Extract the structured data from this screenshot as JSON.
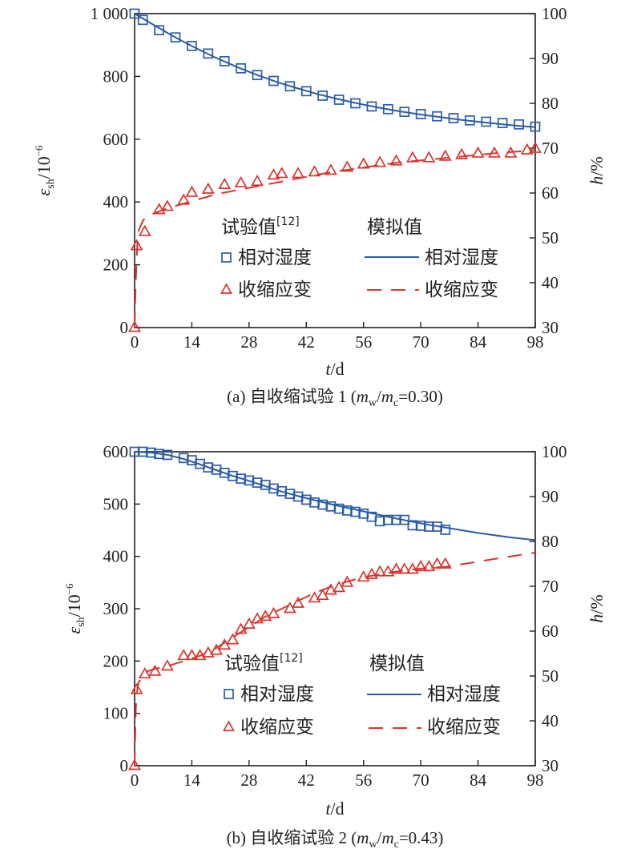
{
  "chart_data": [
    {
      "type": "line",
      "title": "",
      "caption": "(a) 自收缩试验 1 (m_w/m_c=0.30)",
      "xlabel": "t/d",
      "ylabel_left": "ε_sh/10^-6",
      "ylabel_right": "h/%",
      "xlim": [
        0,
        98
      ],
      "ylim_left": [
        0,
        1000
      ],
      "ylim_right": [
        30,
        100
      ],
      "xticks": [
        "0",
        "14",
        "28",
        "42",
        "56",
        "70",
        "84",
        "98"
      ],
      "yticks_left": [
        "0",
        "200",
        "400",
        "600",
        "800",
        "1 000"
      ],
      "yticks_right": [
        "30",
        "40",
        "50",
        "60",
        "70",
        "80",
        "90",
        "100"
      ],
      "legend": {
        "header_exp": "试验值",
        "header_exp_ref": "[12]",
        "header_sim": "模拟值",
        "rh_label": "相对湿度",
        "shrink_label": "收缩应变",
        "placement": "center"
      },
      "series": [
        {
          "name": "相对湿度",
          "kind": "experimental",
          "axis": "right",
          "color": "#2a5ca8",
          "marker": "square",
          "x": [
            0,
            2,
            6,
            10,
            14,
            18,
            22,
            26,
            30,
            34,
            38,
            42,
            46,
            50,
            54,
            58,
            62,
            66,
            70,
            74,
            78,
            82,
            86,
            90,
            94,
            98
          ],
          "y": [
            100,
            98.6,
            96.3,
            94.7,
            92.8,
            91.1,
            89.4,
            87.8,
            86.3,
            85,
            83.8,
            82.7,
            81.7,
            80.8,
            80,
            79.3,
            78.7,
            78.1,
            77.6,
            77.1,
            76.7,
            76.2,
            75.9,
            75.6,
            75.3,
            74.8
          ]
        },
        {
          "name": "相对湿度",
          "kind": "simulated",
          "axis": "right",
          "color": "#2a5ca8",
          "style": "solid",
          "x": [
            0,
            5,
            10,
            15,
            20,
            25,
            30,
            35,
            40,
            45,
            50,
            55,
            60,
            65,
            70,
            75,
            80,
            85,
            90,
            95,
            98
          ],
          "y": [
            100,
            97.3,
            94.7,
            92.3,
            90.1,
            88.1,
            86.3,
            84.7,
            83.3,
            82,
            80.9,
            79.9,
            79,
            78.2,
            77.5,
            76.9,
            76.3,
            75.8,
            75.3,
            74.9,
            74.7
          ]
        },
        {
          "name": "收缩应变",
          "kind": "experimental",
          "axis": "left",
          "color": "#d9342b",
          "marker": "triangle",
          "x": [
            0,
            0.5,
            2.5,
            6,
            8,
            12,
            14,
            18,
            22,
            26,
            30,
            34,
            36,
            40,
            44,
            48,
            52,
            56,
            60,
            64,
            68,
            72,
            76,
            80,
            84,
            88,
            92,
            96,
            98
          ],
          "y": [
            0,
            260,
            305,
            375,
            385,
            405,
            430,
            440,
            455,
            460,
            465,
            485,
            490,
            490,
            495,
            500,
            510,
            520,
            525,
            530,
            540,
            540,
            545,
            550,
            555,
            555,
            555,
            565,
            570
          ]
        },
        {
          "name": "收缩应变",
          "kind": "simulated",
          "axis": "left",
          "color": "#d9342b",
          "style": "dashed",
          "x": [
            0,
            0.3,
            0.7,
            1,
            2,
            3,
            5,
            8,
            12,
            16,
            20,
            26,
            32,
            40,
            48,
            56,
            64,
            72,
            80,
            88,
            98
          ],
          "y": [
            0,
            150,
            280,
            310,
            340,
            355,
            365,
            380,
            395,
            410,
            425,
            440,
            455,
            475,
            495,
            510,
            525,
            535,
            545,
            555,
            565
          ]
        }
      ]
    },
    {
      "type": "line",
      "title": "",
      "caption": "(b) 自收缩试验 2 (m_w/m_c=0.43)",
      "xlabel": "t/d",
      "ylabel_left": "ε_sh/10^-6",
      "ylabel_right": "h/%",
      "xlim": [
        0,
        98
      ],
      "ylim_left": [
        0,
        600
      ],
      "ylim_right": [
        30,
        100
      ],
      "xticks": [
        "0",
        "14",
        "28",
        "42",
        "56",
        "70",
        "84",
        "98"
      ],
      "yticks_left": [
        "0",
        "100",
        "200",
        "300",
        "400",
        "500",
        "600"
      ],
      "yticks_right": [
        "30",
        "40",
        "50",
        "60",
        "70",
        "80",
        "90",
        "100"
      ],
      "legend": {
        "header_exp": "试验值",
        "header_exp_ref": "[12]",
        "header_sim": "模拟值",
        "rh_label": "相对湿度",
        "shrink_label": "收缩应变",
        "placement": "center"
      },
      "series": [
        {
          "name": "相对湿度",
          "kind": "experimental",
          "axis": "right",
          "color": "#2a5ca8",
          "marker": "square",
          "x": [
            0,
            2,
            4,
            6,
            8,
            12,
            14,
            16,
            18,
            20,
            22,
            24,
            26,
            28,
            30,
            32,
            34,
            36,
            38,
            40,
            42,
            44,
            46,
            48,
            50,
            52,
            54,
            56,
            58,
            60,
            62,
            64,
            66,
            68,
            70,
            72,
            74,
            76
          ],
          "y": [
            100,
            100,
            99.8,
            99.5,
            99.3,
            98.6,
            98.1,
            97.3,
            96.5,
            96,
            95.3,
            94.6,
            94,
            93.6,
            93.1,
            92.6,
            91.8,
            91.2,
            90.6,
            90,
            89.3,
            88.7,
            88.2,
            87.8,
            87.3,
            86.9,
            86.6,
            86.2,
            85.5,
            84.5,
            84.8,
            84.8,
            84.8,
            83.6,
            83.5,
            83.3,
            83.3,
            82.6
          ]
        },
        {
          "name": "相对湿度",
          "kind": "simulated",
          "axis": "right",
          "color": "#2a5ca8",
          "style": "solid",
          "x": [
            0,
            4,
            8,
            12,
            16,
            20,
            24,
            28,
            32,
            36,
            40,
            44,
            48,
            52,
            56,
            60,
            64,
            68,
            72,
            76,
            80,
            84,
            88,
            92,
            96,
            98
          ],
          "y": [
            100,
            99.8,
            99.3,
            98.4,
            97.2,
            95.9,
            94.6,
            93.5,
            92.3,
            91.1,
            90.1,
            89.2,
            88.3,
            87.5,
            86.7,
            85.9,
            85.1,
            84.4,
            83.7,
            83.1,
            82.5,
            81.9,
            81.4,
            80.9,
            80.5,
            80.3
          ]
        },
        {
          "name": "收缩应变",
          "kind": "experimental",
          "axis": "left",
          "color": "#d9342b",
          "marker": "triangle",
          "x": [
            0,
            0.5,
            2.5,
            5,
            8,
            12,
            14,
            16,
            18,
            20,
            22,
            24,
            26,
            28,
            30,
            32,
            34,
            38,
            40,
            44,
            46,
            48,
            50,
            52,
            56,
            58,
            60,
            62,
            64,
            66,
            68,
            70,
            72,
            74,
            76
          ],
          "y": [
            0,
            145,
            175,
            180,
            190,
            210,
            210,
            210,
            215,
            220,
            230,
            240,
            260,
            270,
            280,
            285,
            290,
            300,
            310,
            320,
            325,
            335,
            340,
            350,
            360,
            365,
            370,
            370,
            375,
            375,
            375,
            380,
            380,
            385,
            385
          ]
        },
        {
          "name": "收缩应变",
          "kind": "simulated",
          "axis": "left",
          "color": "#d9342b",
          "style": "dashed",
          "x": [
            0,
            0.3,
            0.7,
            1,
            2,
            3,
            5,
            8,
            10,
            12,
            16,
            20,
            24,
            28,
            32,
            36,
            40,
            44,
            48,
            52,
            56,
            60,
            64,
            68,
            72,
            76,
            80,
            84,
            88,
            92,
            96,
            98
          ],
          "y": [
            0,
            110,
            150,
            160,
            170,
            180,
            185,
            190,
            195,
            200,
            210,
            225,
            245,
            265,
            285,
            300,
            315,
            330,
            342,
            352,
            360,
            366,
            371,
            375,
            378,
            380,
            385,
            390,
            395,
            400,
            405,
            407
          ]
        }
      ]
    }
  ]
}
